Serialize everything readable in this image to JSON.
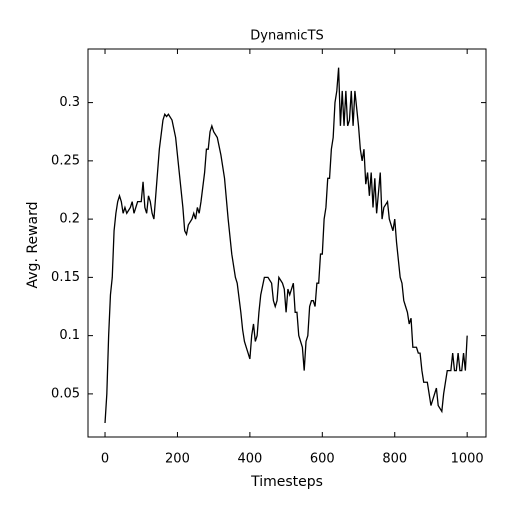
{
  "chart_data": {
    "type": "line",
    "title": "DynamicTS",
    "xlabel": "Timesteps",
    "ylabel": "Avg. Reward",
    "color": "#000000",
    "x": [
      0,
      5,
      10,
      15,
      20,
      25,
      30,
      35,
      40,
      45,
      50,
      55,
      60,
      70,
      75,
      80,
      90,
      100,
      105,
      110,
      115,
      120,
      125,
      130,
      135,
      140,
      150,
      160,
      165,
      170,
      175,
      185,
      195,
      205,
      215,
      220,
      225,
      230,
      240,
      245,
      250,
      255,
      260,
      265,
      275,
      280,
      285,
      290,
      295,
      300,
      310,
      320,
      330,
      340,
      350,
      360,
      365,
      375,
      380,
      385,
      390,
      395,
      400,
      405,
      410,
      415,
      420,
      425,
      430,
      440,
      450,
      460,
      465,
      470,
      475,
      480,
      490,
      495,
      500,
      505,
      510,
      520,
      525,
      530,
      535,
      540,
      545,
      550,
      555,
      560,
      565,
      570,
      575,
      580,
      585,
      590,
      595,
      600,
      605,
      610,
      615,
      620,
      625,
      630,
      635,
      640,
      645,
      650,
      655,
      660,
      665,
      670,
      675,
      680,
      685,
      690,
      700,
      705,
      710,
      715,
      720,
      725,
      730,
      735,
      740,
      745,
      750,
      760,
      765,
      770,
      780,
      785,
      795,
      800,
      805,
      810,
      815,
      820,
      825,
      830,
      835,
      840,
      845,
      850,
      860,
      865,
      870,
      875,
      880,
      890,
      895,
      900,
      915,
      920,
      930,
      935,
      945,
      955,
      960,
      965,
      970,
      975,
      980,
      985,
      990,
      995,
      1000
    ],
    "values": [
      0.025,
      0.05,
      0.1,
      0.135,
      0.15,
      0.19,
      0.205,
      0.215,
      0.22,
      0.215,
      0.205,
      0.21,
      0.205,
      0.21,
      0.215,
      0.205,
      0.215,
      0.215,
      0.232,
      0.21,
      0.205,
      0.22,
      0.215,
      0.205,
      0.2,
      0.22,
      0.26,
      0.285,
      0.29,
      0.288,
      0.29,
      0.285,
      0.27,
      0.24,
      0.21,
      0.19,
      0.187,
      0.195,
      0.2,
      0.205,
      0.2,
      0.21,
      0.205,
      0.215,
      0.24,
      0.26,
      0.26,
      0.275,
      0.28,
      0.275,
      0.27,
      0.255,
      0.235,
      0.2,
      0.17,
      0.15,
      0.145,
      0.12,
      0.105,
      0.095,
      0.09,
      0.085,
      0.08,
      0.1,
      0.11,
      0.095,
      0.1,
      0.12,
      0.135,
      0.15,
      0.15,
      0.145,
      0.13,
      0.125,
      0.13,
      0.15,
      0.145,
      0.14,
      0.12,
      0.14,
      0.135,
      0.145,
      0.12,
      0.12,
      0.1,
      0.095,
      0.09,
      0.07,
      0.095,
      0.1,
      0.125,
      0.13,
      0.13,
      0.125,
      0.145,
      0.145,
      0.17,
      0.17,
      0.2,
      0.21,
      0.235,
      0.235,
      0.26,
      0.27,
      0.3,
      0.31,
      0.33,
      0.28,
      0.31,
      0.28,
      0.31,
      0.28,
      0.285,
      0.31,
      0.28,
      0.31,
      0.28,
      0.26,
      0.25,
      0.26,
      0.23,
      0.24,
      0.22,
      0.24,
      0.21,
      0.235,
      0.205,
      0.24,
      0.2,
      0.21,
      0.215,
      0.2,
      0.19,
      0.2,
      0.18,
      0.165,
      0.15,
      0.145,
      0.13,
      0.125,
      0.12,
      0.11,
      0.115,
      0.09,
      0.09,
      0.085,
      0.085,
      0.07,
      0.06,
      0.06,
      0.05,
      0.04,
      0.055,
      0.04,
      0.035,
      0.05,
      0.07,
      0.07,
      0.085,
      0.07,
      0.07,
      0.085,
      0.07,
      0.07,
      0.085,
      0.07,
      0.1
    ],
    "xlim": [
      -47,
      1052
    ],
    "ylim": [
      0.013,
      0.346
    ],
    "xticks": [
      0,
      200,
      400,
      600,
      800,
      1000
    ],
    "yticks": [
      0.05,
      0.1,
      0.15,
      0.2,
      0.25,
      0.3
    ]
  }
}
